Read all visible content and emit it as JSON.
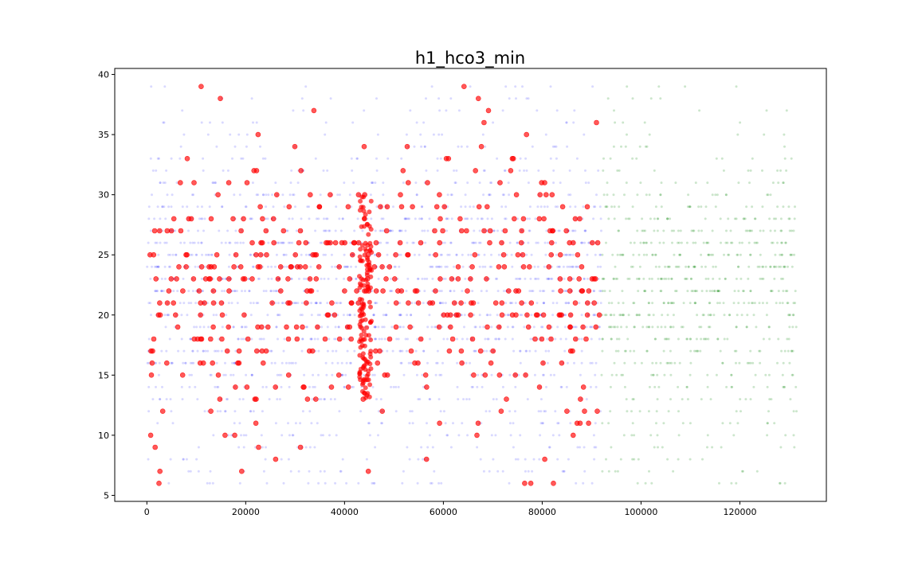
{
  "chart_data": {
    "type": "scatter",
    "title": "h1_hco3_min",
    "xlabel": "",
    "ylabel": "",
    "xlim": [
      -6500,
      137500
    ],
    "ylim": [
      4.5,
      40.5
    ],
    "x_ticks": [
      0,
      20000,
      40000,
      60000,
      80000,
      100000,
      120000
    ],
    "x_tick_labels": [
      "0",
      "20000",
      "40000",
      "60000",
      "80000",
      "100000",
      "120000"
    ],
    "y_ticks": [
      5,
      10,
      15,
      20,
      25,
      30,
      35,
      40
    ],
    "y_tick_labels": [
      "5",
      "10",
      "15",
      "20",
      "25",
      "30",
      "35",
      "40"
    ],
    "grid": false,
    "legend": "none",
    "series": [
      {
        "color": "#0000ff",
        "opacity": 0.15,
        "marker_size": "small",
        "x_range": [
          0,
          92000
        ],
        "y_levels": [
          6,
          7,
          8,
          9,
          10,
          11,
          12,
          13,
          14,
          15,
          16,
          17,
          18,
          19,
          20,
          21,
          22,
          23,
          24,
          25,
          26,
          27,
          28,
          29,
          30,
          31,
          32,
          33,
          34,
          35,
          36,
          37,
          38,
          39
        ],
        "density": [
          0.25,
          0.25,
          0.25,
          0.25,
          0.3,
          0.3,
          0.35,
          0.4,
          0.45,
          0.55,
          0.6,
          0.65,
          0.75,
          0.85,
          0.95,
          1,
          1,
          1,
          1,
          0.95,
          0.9,
          0.8,
          0.7,
          0.55,
          0.45,
          0.35,
          0.3,
          0.25,
          0.2,
          0.15,
          0.15,
          0.12,
          0.12,
          0.1
        ]
      },
      {
        "color": "#008000",
        "opacity": 0.2,
        "marker_size": "small",
        "x_range": [
          92000,
          131500
        ],
        "y_levels": [
          6,
          7,
          8,
          9,
          10,
          11,
          12,
          13,
          14,
          15,
          16,
          17,
          18,
          19,
          20,
          21,
          22,
          23,
          24,
          25,
          26,
          27,
          28,
          29,
          30,
          31,
          32,
          33,
          34,
          35,
          36,
          37,
          38,
          39
        ],
        "density": [
          0.2,
          0.2,
          0.2,
          0.2,
          0.25,
          0.3,
          0.3,
          0.35,
          0.4,
          0.5,
          0.6,
          0.65,
          0.75,
          0.85,
          0.95,
          1,
          1,
          1,
          1,
          0.95,
          0.9,
          0.8,
          0.7,
          0.55,
          0.4,
          0.3,
          0.25,
          0.2,
          0.15,
          0.12,
          0.1,
          0.1,
          0.1,
          0.08
        ]
      },
      {
        "color": "#ff0000",
        "opacity": 0.65,
        "marker_size": "large",
        "x_range": [
          0,
          92000
        ],
        "y_levels": [
          6,
          7,
          8,
          9,
          10,
          11,
          12,
          13,
          14,
          15,
          16,
          17,
          18,
          19,
          20,
          21,
          22,
          23,
          24,
          25,
          26,
          27,
          28,
          29,
          30,
          31,
          32,
          33,
          34,
          35,
          36,
          37,
          38,
          39
        ],
        "density": [
          0.08,
          0.07,
          0.07,
          0.06,
          0.1,
          0.12,
          0.15,
          0.17,
          0.2,
          0.27,
          0.32,
          0.37,
          0.45,
          0.5,
          0.6,
          0.65,
          0.62,
          0.65,
          0.6,
          0.55,
          0.55,
          0.45,
          0.35,
          0.3,
          0.25,
          0.18,
          0.12,
          0.1,
          0.08,
          0.05,
          0.05,
          0.05,
          0.05,
          0.05
        ],
        "cluster_x": [
          43000,
          45500
        ],
        "y_min_value": 6,
        "y_max_value": 39
      }
    ]
  }
}
